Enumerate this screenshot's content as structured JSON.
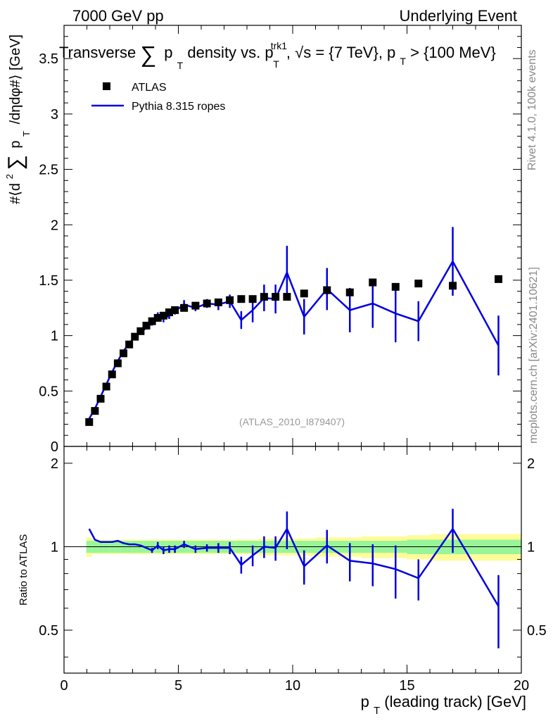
{
  "header": {
    "left": "7000 GeV pp",
    "right": "Underlying Event"
  },
  "side": {
    "rivet": "Rivet 4.1.0,  100k events",
    "mcplots": "mcplots.cern.ch [arXiv:2401.10621]"
  },
  "reference": "(ATLAS_2010_I879407)",
  "colors": {
    "data": "#000000",
    "mc": "#0000e0",
    "band_inner": "#99f599",
    "band_outer": "#fffb99"
  },
  "chart_data": [
    {
      "type": "scatter",
      "panel": "main",
      "title": "Transverse Σ pT density vs. pT^trk1, √s = {7 TeV}, pT > {100 MeV}",
      "title_parts": {
        "t1": "Transverse",
        "sum": "∑",
        "p": "p",
        "T": "T",
        "t2": " density vs. p",
        "trk1": "trk1",
        "t3": ", √s = {7 TeV}, p",
        "t4": " > {100 MeV}"
      },
      "ylabel": "#⟨d² ∑ pT /dηdφ#⟩ [GeV]",
      "ylabel_parts": {
        "a": "#⟨d",
        "two": "2",
        "sum": "∑",
        "p": "p",
        "T1": "T",
        "b": "/dηdφ#⟩ [GeV]",
        "T2": "T"
      },
      "xlim": [
        0,
        20
      ],
      "ylim": [
        0,
        3.8
      ],
      "yticks": [
        0,
        0.5,
        1,
        1.5,
        2,
        2.5,
        3,
        3.5
      ],
      "ytick_labels": [
        "0",
        "0.5",
        "1",
        "1.5",
        "2",
        "2.5",
        "3",
        "3.5"
      ],
      "legend": [
        "ATLAS",
        "Pythia 8.315 ropes"
      ],
      "x": [
        1.1,
        1.35,
        1.6,
        1.85,
        2.1,
        2.35,
        2.6,
        2.85,
        3.1,
        3.35,
        3.6,
        3.85,
        4.1,
        4.35,
        4.6,
        4.85,
        5.25,
        5.75,
        6.25,
        6.75,
        7.25,
        7.75,
        8.25,
        8.75,
        9.25,
        9.75,
        10.5,
        11.5,
        12.5,
        13.5,
        14.5,
        15.5,
        17.0,
        19.0
      ],
      "series": [
        {
          "name": "ATLAS",
          "values": [
            0.22,
            0.32,
            0.43,
            0.54,
            0.65,
            0.75,
            0.84,
            0.92,
            0.99,
            1.04,
            1.09,
            1.13,
            1.16,
            1.18,
            1.21,
            1.23,
            1.25,
            1.27,
            1.29,
            1.3,
            1.32,
            1.33,
            1.33,
            1.35,
            1.35,
            1.35,
            1.38,
            1.41,
            1.39,
            1.48,
            1.44,
            1.47,
            1.45,
            1.51
          ]
        },
        {
          "name": "Pythia 8.315 ropes",
          "values": [
            0.25,
            0.34,
            0.45,
            0.56,
            0.67,
            0.77,
            0.86,
            0.93,
            0.99,
            1.03,
            1.07,
            1.11,
            1.17,
            1.15,
            1.18,
            1.22,
            1.28,
            1.25,
            1.29,
            1.28,
            1.31,
            1.14,
            1.23,
            1.34,
            1.33,
            1.57,
            1.17,
            1.42,
            1.23,
            1.29,
            1.2,
            1.13,
            1.67,
            0.91
          ],
          "errors": [
            0.005,
            0.005,
            0.005,
            0.005,
            0.005,
            0.005,
            0.005,
            0.005,
            0.005,
            0.005,
            0.01,
            0.02,
            0.04,
            0.03,
            0.03,
            0.03,
            0.04,
            0.03,
            0.04,
            0.05,
            0.06,
            0.08,
            0.11,
            0.12,
            0.13,
            0.24,
            0.16,
            0.19,
            0.2,
            0.22,
            0.26,
            0.18,
            0.31,
            0.27
          ]
        }
      ]
    },
    {
      "type": "line",
      "panel": "ratio",
      "ylabel": "Ratio to ATLAS",
      "xlabel": "pT (leading track) [GeV]",
      "xlabel_parts": {
        "p": "p",
        "T": "T",
        "rest": " (leading track) [GeV]"
      },
      "xlim": [
        0,
        20
      ],
      "ylim": [
        0.35,
        2.3
      ],
      "xticks": [
        0,
        5,
        10,
        15,
        20
      ],
      "xtick_labels": [
        "0",
        "5",
        "10",
        "15",
        "20"
      ],
      "yticks": [
        0.5,
        1,
        2
      ],
      "ytick_labels": [
        "0.5",
        "1",
        "2"
      ],
      "bin_edges": [
        0.975,
        1.225,
        1.475,
        1.725,
        1.975,
        2.225,
        2.475,
        2.725,
        2.975,
        3.225,
        3.475,
        3.725,
        3.975,
        4.225,
        4.475,
        4.725,
        5.0,
        5.5,
        6.0,
        6.5,
        7.0,
        7.5,
        8.0,
        8.5,
        9.0,
        9.5,
        10.0,
        11.0,
        12.0,
        13.0,
        14.0,
        15.0,
        16.0,
        18.0,
        20.0
      ],
      "band_inner": [
        0.05,
        0.05,
        0.05,
        0.05,
        0.05,
        0.05,
        0.05,
        0.05,
        0.05,
        0.05,
        0.05,
        0.05,
        0.05,
        0.05,
        0.05,
        0.05,
        0.05,
        0.05,
        0.05,
        0.05,
        0.05,
        0.05,
        0.05,
        0.05,
        0.05,
        0.05,
        0.05,
        0.05,
        0.05,
        0.05,
        0.05,
        0.06,
        0.06,
        0.06
      ],
      "band_outer": [
        0.08,
        0.06,
        0.06,
        0.06,
        0.06,
        0.06,
        0.06,
        0.06,
        0.06,
        0.06,
        0.06,
        0.06,
        0.06,
        0.06,
        0.06,
        0.06,
        0.06,
        0.06,
        0.06,
        0.06,
        0.06,
        0.06,
        0.06,
        0.07,
        0.07,
        0.07,
        0.07,
        0.08,
        0.08,
        0.09,
        0.09,
        0.1,
        0.11,
        0.11
      ],
      "series": [
        {
          "name": "Pythia 8.315 ropes / ATLAS",
          "values": [
            1.16,
            1.06,
            1.04,
            1.04,
            1.04,
            1.05,
            1.03,
            1.02,
            1.02,
            1.01,
            0.99,
            0.97,
            1.01,
            0.97,
            0.98,
            0.98,
            1.02,
            0.98,
            0.99,
            0.99,
            0.99,
            0.86,
            0.93,
            1.0,
            0.99,
            1.16,
            0.85,
            1.01,
            0.89,
            0.87,
            0.83,
            0.77,
            1.16,
            0.61
          ],
          "errors": [
            0.005,
            0.005,
            0.005,
            0.005,
            0.005,
            0.005,
            0.005,
            0.005,
            0.005,
            0.005,
            0.01,
            0.02,
            0.03,
            0.03,
            0.03,
            0.03,
            0.03,
            0.03,
            0.03,
            0.04,
            0.05,
            0.06,
            0.08,
            0.09,
            0.1,
            0.18,
            0.12,
            0.14,
            0.14,
            0.15,
            0.18,
            0.13,
            0.21,
            0.18
          ]
        }
      ]
    }
  ]
}
